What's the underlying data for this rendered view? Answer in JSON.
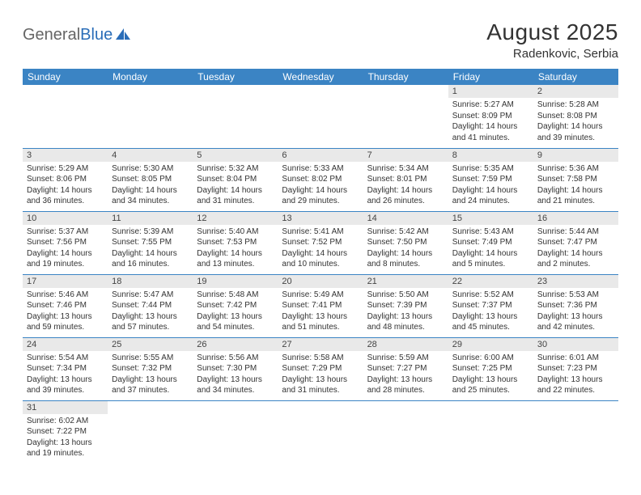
{
  "brand": {
    "part1": "General",
    "part2": "Blue"
  },
  "title": "August 2025",
  "location": "Radenkovic, Serbia",
  "colors": {
    "header_bg": "#3b84c4",
    "header_text": "#ffffff",
    "daynum_bg": "#e9e9e9",
    "row_border": "#3b84c4",
    "brand_accent": "#2a6db8"
  },
  "weekdays": [
    "Sunday",
    "Monday",
    "Tuesday",
    "Wednesday",
    "Thursday",
    "Friday",
    "Saturday"
  ],
  "weeks": [
    [
      null,
      null,
      null,
      null,
      null,
      {
        "n": "1",
        "sunrise": "Sunrise: 5:27 AM",
        "sunset": "Sunset: 8:09 PM",
        "daylight": "Daylight: 14 hours and 41 minutes."
      },
      {
        "n": "2",
        "sunrise": "Sunrise: 5:28 AM",
        "sunset": "Sunset: 8:08 PM",
        "daylight": "Daylight: 14 hours and 39 minutes."
      }
    ],
    [
      {
        "n": "3",
        "sunrise": "Sunrise: 5:29 AM",
        "sunset": "Sunset: 8:06 PM",
        "daylight": "Daylight: 14 hours and 36 minutes."
      },
      {
        "n": "4",
        "sunrise": "Sunrise: 5:30 AM",
        "sunset": "Sunset: 8:05 PM",
        "daylight": "Daylight: 14 hours and 34 minutes."
      },
      {
        "n": "5",
        "sunrise": "Sunrise: 5:32 AM",
        "sunset": "Sunset: 8:04 PM",
        "daylight": "Daylight: 14 hours and 31 minutes."
      },
      {
        "n": "6",
        "sunrise": "Sunrise: 5:33 AM",
        "sunset": "Sunset: 8:02 PM",
        "daylight": "Daylight: 14 hours and 29 minutes."
      },
      {
        "n": "7",
        "sunrise": "Sunrise: 5:34 AM",
        "sunset": "Sunset: 8:01 PM",
        "daylight": "Daylight: 14 hours and 26 minutes."
      },
      {
        "n": "8",
        "sunrise": "Sunrise: 5:35 AM",
        "sunset": "Sunset: 7:59 PM",
        "daylight": "Daylight: 14 hours and 24 minutes."
      },
      {
        "n": "9",
        "sunrise": "Sunrise: 5:36 AM",
        "sunset": "Sunset: 7:58 PM",
        "daylight": "Daylight: 14 hours and 21 minutes."
      }
    ],
    [
      {
        "n": "10",
        "sunrise": "Sunrise: 5:37 AM",
        "sunset": "Sunset: 7:56 PM",
        "daylight": "Daylight: 14 hours and 19 minutes."
      },
      {
        "n": "11",
        "sunrise": "Sunrise: 5:39 AM",
        "sunset": "Sunset: 7:55 PM",
        "daylight": "Daylight: 14 hours and 16 minutes."
      },
      {
        "n": "12",
        "sunrise": "Sunrise: 5:40 AM",
        "sunset": "Sunset: 7:53 PM",
        "daylight": "Daylight: 14 hours and 13 minutes."
      },
      {
        "n": "13",
        "sunrise": "Sunrise: 5:41 AM",
        "sunset": "Sunset: 7:52 PM",
        "daylight": "Daylight: 14 hours and 10 minutes."
      },
      {
        "n": "14",
        "sunrise": "Sunrise: 5:42 AM",
        "sunset": "Sunset: 7:50 PM",
        "daylight": "Daylight: 14 hours and 8 minutes."
      },
      {
        "n": "15",
        "sunrise": "Sunrise: 5:43 AM",
        "sunset": "Sunset: 7:49 PM",
        "daylight": "Daylight: 14 hours and 5 minutes."
      },
      {
        "n": "16",
        "sunrise": "Sunrise: 5:44 AM",
        "sunset": "Sunset: 7:47 PM",
        "daylight": "Daylight: 14 hours and 2 minutes."
      }
    ],
    [
      {
        "n": "17",
        "sunrise": "Sunrise: 5:46 AM",
        "sunset": "Sunset: 7:46 PM",
        "daylight": "Daylight: 13 hours and 59 minutes."
      },
      {
        "n": "18",
        "sunrise": "Sunrise: 5:47 AM",
        "sunset": "Sunset: 7:44 PM",
        "daylight": "Daylight: 13 hours and 57 minutes."
      },
      {
        "n": "19",
        "sunrise": "Sunrise: 5:48 AM",
        "sunset": "Sunset: 7:42 PM",
        "daylight": "Daylight: 13 hours and 54 minutes."
      },
      {
        "n": "20",
        "sunrise": "Sunrise: 5:49 AM",
        "sunset": "Sunset: 7:41 PM",
        "daylight": "Daylight: 13 hours and 51 minutes."
      },
      {
        "n": "21",
        "sunrise": "Sunrise: 5:50 AM",
        "sunset": "Sunset: 7:39 PM",
        "daylight": "Daylight: 13 hours and 48 minutes."
      },
      {
        "n": "22",
        "sunrise": "Sunrise: 5:52 AM",
        "sunset": "Sunset: 7:37 PM",
        "daylight": "Daylight: 13 hours and 45 minutes."
      },
      {
        "n": "23",
        "sunrise": "Sunrise: 5:53 AM",
        "sunset": "Sunset: 7:36 PM",
        "daylight": "Daylight: 13 hours and 42 minutes."
      }
    ],
    [
      {
        "n": "24",
        "sunrise": "Sunrise: 5:54 AM",
        "sunset": "Sunset: 7:34 PM",
        "daylight": "Daylight: 13 hours and 39 minutes."
      },
      {
        "n": "25",
        "sunrise": "Sunrise: 5:55 AM",
        "sunset": "Sunset: 7:32 PM",
        "daylight": "Daylight: 13 hours and 37 minutes."
      },
      {
        "n": "26",
        "sunrise": "Sunrise: 5:56 AM",
        "sunset": "Sunset: 7:30 PM",
        "daylight": "Daylight: 13 hours and 34 minutes."
      },
      {
        "n": "27",
        "sunrise": "Sunrise: 5:58 AM",
        "sunset": "Sunset: 7:29 PM",
        "daylight": "Daylight: 13 hours and 31 minutes."
      },
      {
        "n": "28",
        "sunrise": "Sunrise: 5:59 AM",
        "sunset": "Sunset: 7:27 PM",
        "daylight": "Daylight: 13 hours and 28 minutes."
      },
      {
        "n": "29",
        "sunrise": "Sunrise: 6:00 AM",
        "sunset": "Sunset: 7:25 PM",
        "daylight": "Daylight: 13 hours and 25 minutes."
      },
      {
        "n": "30",
        "sunrise": "Sunrise: 6:01 AM",
        "sunset": "Sunset: 7:23 PM",
        "daylight": "Daylight: 13 hours and 22 minutes."
      }
    ],
    [
      {
        "n": "31",
        "sunrise": "Sunrise: 6:02 AM",
        "sunset": "Sunset: 7:22 PM",
        "daylight": "Daylight: 13 hours and 19 minutes."
      },
      null,
      null,
      null,
      null,
      null,
      null
    ]
  ]
}
